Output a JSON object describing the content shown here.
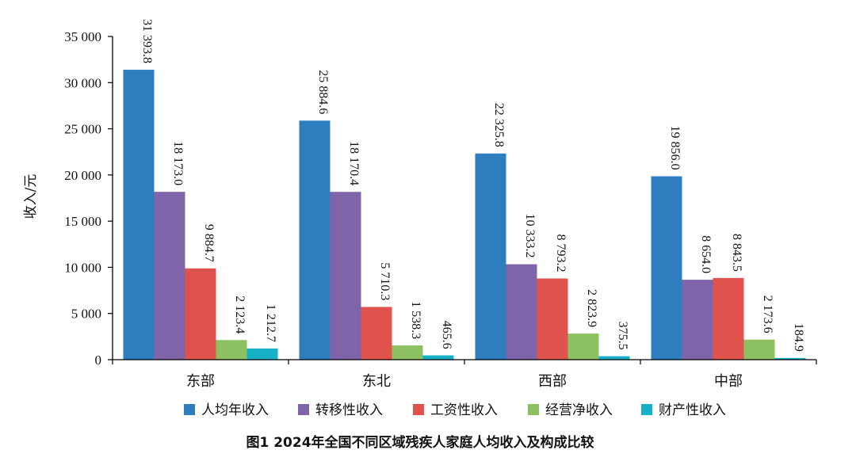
{
  "chart_data": {
    "type": "bar",
    "title": "图1  2024年全国不同区域残疾人家庭人均收入及构成比较",
    "ylabel": "收入/元",
    "xlabel": "",
    "ylim": [
      0,
      35000
    ],
    "yticks": [
      0,
      5000,
      10000,
      15000,
      20000,
      25000,
      30000,
      35000
    ],
    "ytick_labels": [
      "0",
      "5 000",
      "10 000",
      "15 000",
      "20 000",
      "25 000",
      "30 000",
      "35 000"
    ],
    "categories": [
      "东部",
      "东北",
      "西部",
      "中部"
    ],
    "legend_position": "bottom",
    "grid": false,
    "series": [
      {
        "name": "人均年收入",
        "color": "#2e7ebf",
        "values": [
          31393.8,
          25884.6,
          22325.8,
          19856.0
        ],
        "labels": [
          "31 393.8",
          "25 884.6",
          "22 325.8",
          "19 856.0"
        ]
      },
      {
        "name": "转移性收入",
        "color": "#8064a9",
        "values": [
          18173.0,
          18170.4,
          10333.2,
          8654.0
        ],
        "labels": [
          "18 173.0",
          "18 170.4",
          "10 333.2",
          "8 654.0"
        ]
      },
      {
        "name": "工资性收入",
        "color": "#e0524c",
        "values": [
          9884.7,
          5710.3,
          8793.2,
          8843.5
        ],
        "labels": [
          "9 884.7",
          "5 710.3",
          "8 793.2",
          "8 843.5"
        ]
      },
      {
        "name": "经营净收入",
        "color": "#8cc060",
        "values": [
          2123.4,
          1538.3,
          2823.9,
          2173.6
        ],
        "labels": [
          "2 123.4",
          "1 538.3",
          "2 823.9",
          "2 173.6"
        ]
      },
      {
        "name": "财产性收入",
        "color": "#17b1c7",
        "values": [
          1212.7,
          465.6,
          375.5,
          184.9
        ],
        "labels": [
          "1 212.7",
          "465.6",
          "375.5",
          "184.9"
        ]
      }
    ]
  }
}
